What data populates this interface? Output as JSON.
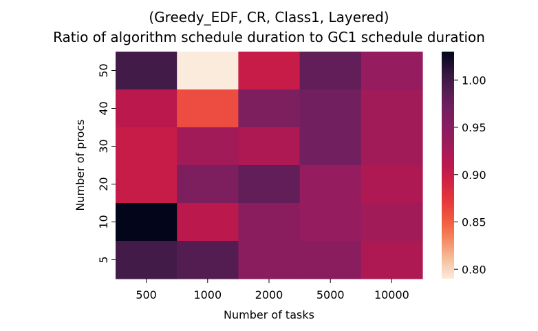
{
  "chart_data": {
    "type": "heatmap",
    "title_line1": "(Greedy_EDF, CR, Class1, Layered)",
    "title_line2": "Ratio of algorithm schedule duration to GC1 schedule duration",
    "xlabel": "Number of tasks",
    "ylabel": "Number of procs",
    "x_categories": [
      "500",
      "1000",
      "2000",
      "5000",
      "10000"
    ],
    "y_categories": [
      "50",
      "40",
      "30",
      "20",
      "10",
      "5"
    ],
    "values": [
      [
        1.0,
        0.79,
        0.9,
        0.98,
        0.94
      ],
      [
        0.91,
        0.86,
        0.96,
        0.97,
        0.93
      ],
      [
        0.9,
        0.93,
        0.92,
        0.97,
        0.93
      ],
      [
        0.9,
        0.96,
        0.98,
        0.94,
        0.92
      ],
      [
        1.03,
        0.91,
        0.95,
        0.94,
        0.93
      ],
      [
        1.0,
        0.99,
        0.95,
        0.95,
        0.92
      ]
    ],
    "colorbar": {
      "vmin": 0.79,
      "vmax": 1.03,
      "ticks": [
        "0.80",
        "0.85",
        "0.90",
        "0.95",
        "1.00"
      ]
    },
    "colormap": "rocket_r"
  }
}
